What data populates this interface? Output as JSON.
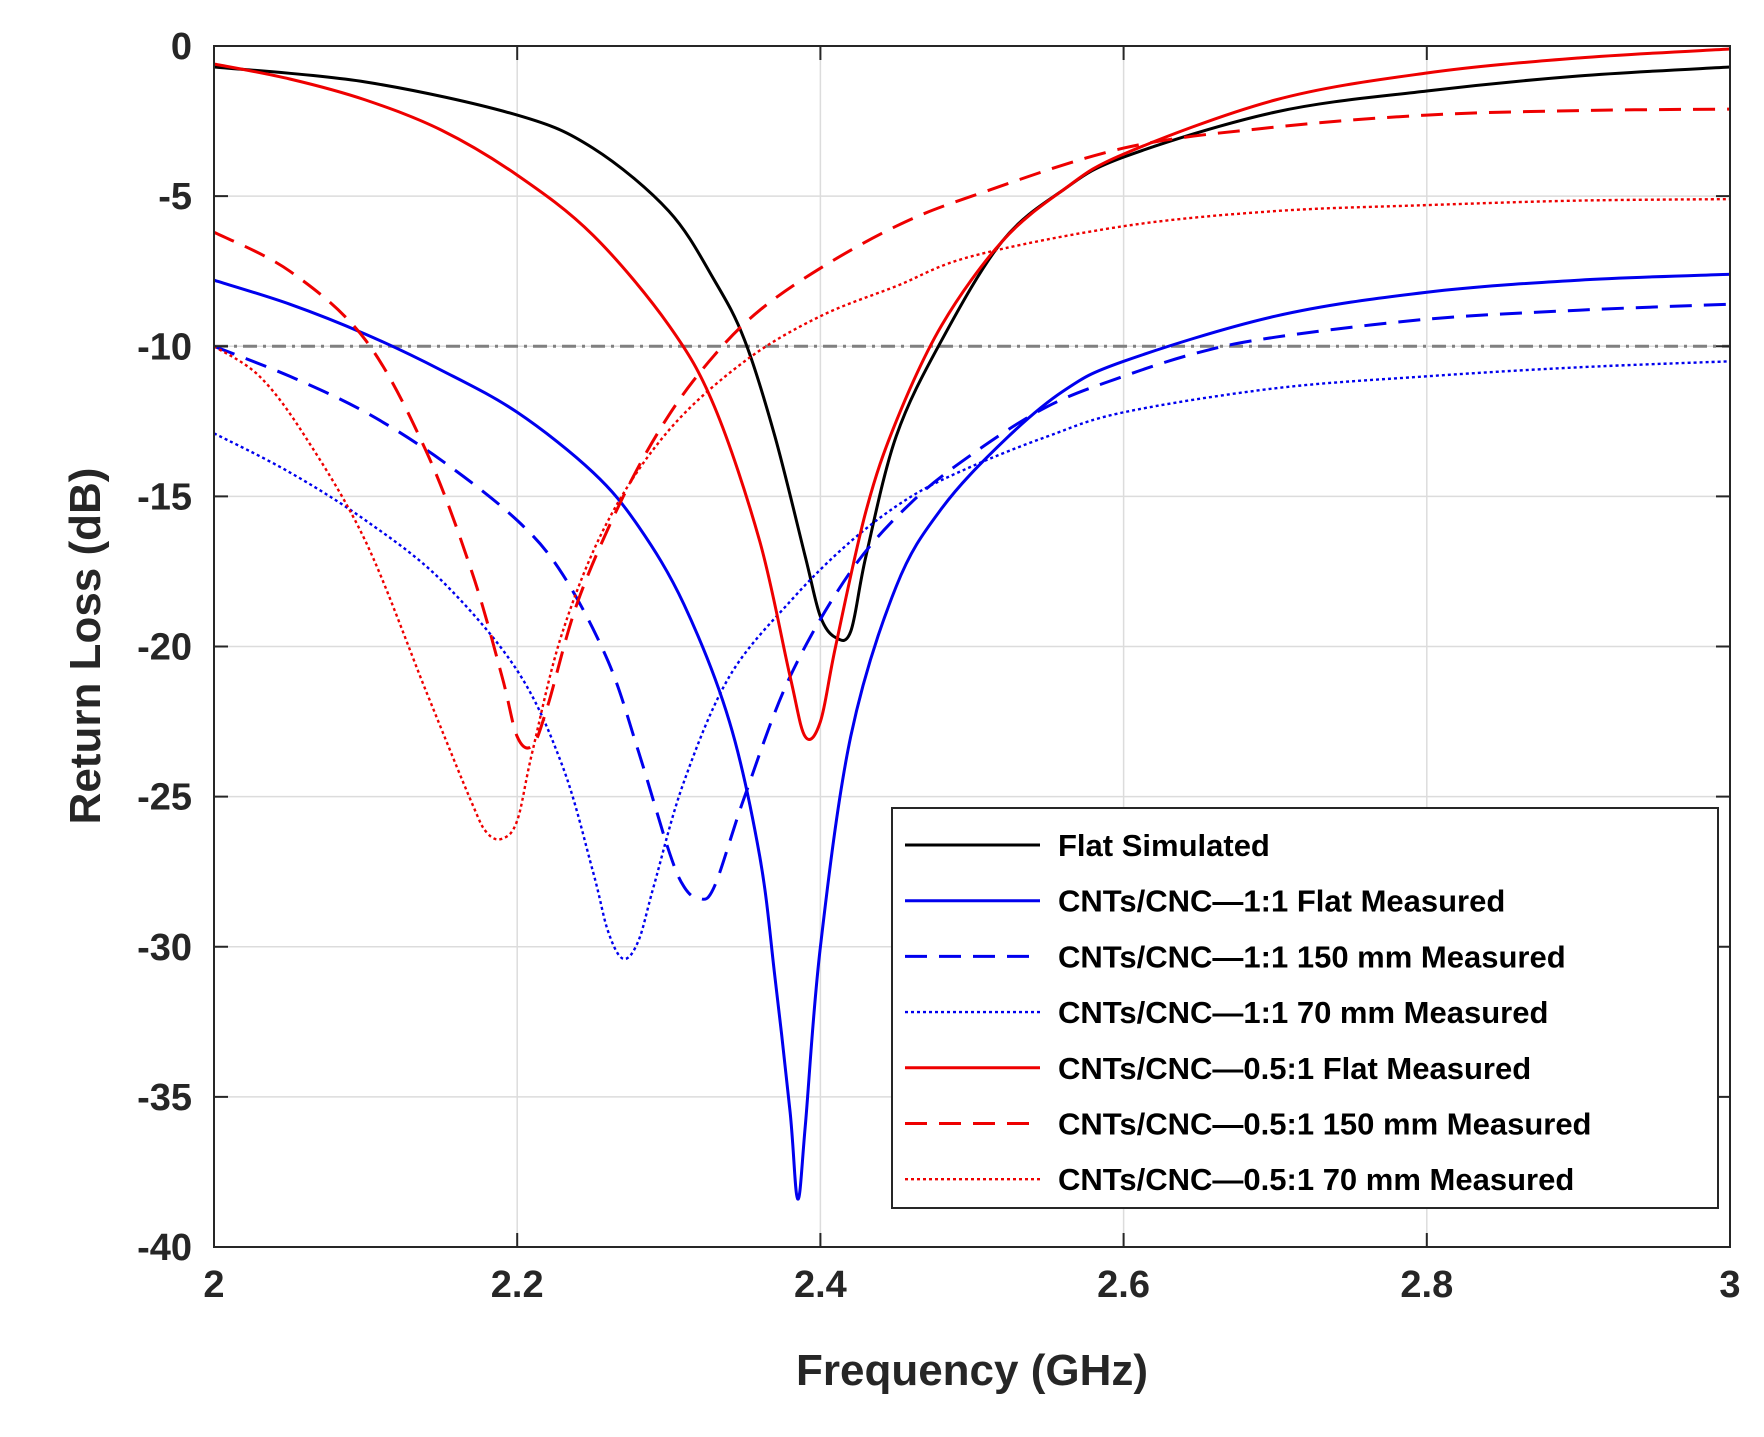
{
  "chart_data": {
    "type": "line",
    "xlabel": "Frequency (GHz)",
    "ylabel": "Return Loss (dB)",
    "xlim": [
      2,
      3
    ],
    "ylim": [
      -40,
      0
    ],
    "xticks": [
      2,
      2.2,
      2.4,
      2.6,
      2.8,
      3
    ],
    "xtick_labels": [
      "2",
      "2.2",
      "2.4",
      "2.6",
      "2.8",
      "3"
    ],
    "yticks": [
      0,
      -5,
      -10,
      -15,
      -20,
      -25,
      -30,
      -35,
      -40
    ],
    "ytick_labels": [
      "0",
      "-5",
      "-10",
      "-15",
      "-20",
      "-25",
      "-30",
      "-35",
      "-40"
    ],
    "grid": true,
    "legend_position": "bottom-right",
    "reference_line": {
      "y": -10,
      "color": "#808080",
      "style": "dashdot"
    },
    "series": [
      {
        "name": "Flat Simulated",
        "color": "#000000",
        "style": "solid",
        "x": [
          2.0,
          2.1,
          2.2,
          2.25,
          2.3,
          2.33,
          2.35,
          2.37,
          2.39,
          2.4,
          2.41,
          2.42,
          2.43,
          2.45,
          2.48,
          2.52,
          2.56,
          2.6,
          2.7,
          2.8,
          2.9,
          3.0
        ],
        "y": [
          -0.7,
          -1.2,
          -2.3,
          -3.4,
          -5.5,
          -7.8,
          -9.8,
          -13.0,
          -17.0,
          -19.0,
          -19.7,
          -19.5,
          -17.0,
          -13.0,
          -9.8,
          -6.5,
          -4.8,
          -3.7,
          -2.2,
          -1.5,
          -1.0,
          -0.7
        ]
      },
      {
        "name": "CNTs/CNC—1:1 Flat Measured",
        "color": "#0000ee",
        "style": "solid",
        "x": [
          2.0,
          2.05,
          2.1,
          2.15,
          2.2,
          2.25,
          2.28,
          2.31,
          2.34,
          2.36,
          2.37,
          2.38,
          2.385,
          2.39,
          2.4,
          2.42,
          2.45,
          2.48,
          2.52,
          2.56,
          2.6,
          2.7,
          2.8,
          2.9,
          3.0
        ],
        "y": [
          -7.8,
          -8.6,
          -9.6,
          -10.8,
          -12.2,
          -14.2,
          -16.0,
          -18.6,
          -22.5,
          -27.0,
          -31.0,
          -35.5,
          -38.4,
          -36.0,
          -30.0,
          -23.0,
          -18.0,
          -15.4,
          -13.2,
          -11.5,
          -10.5,
          -9.0,
          -8.2,
          -7.8,
          -7.6
        ]
      },
      {
        "name": "CNTs/CNC—1:1 150 mm Measured",
        "color": "#0000ee",
        "style": "dashed",
        "x": [
          2.0,
          2.05,
          2.1,
          2.15,
          2.2,
          2.23,
          2.26,
          2.28,
          2.3,
          2.31,
          2.32,
          2.33,
          2.35,
          2.38,
          2.42,
          2.46,
          2.5,
          2.55,
          2.6,
          2.65,
          2.7,
          2.8,
          2.9,
          3.0
        ],
        "y": [
          -10.0,
          -11.0,
          -12.2,
          -13.8,
          -15.8,
          -17.6,
          -20.5,
          -23.5,
          -26.8,
          -28.0,
          -28.4,
          -28.0,
          -25.0,
          -21.0,
          -17.5,
          -15.2,
          -13.6,
          -12.0,
          -11.0,
          -10.2,
          -9.7,
          -9.1,
          -8.8,
          -8.6
        ]
      },
      {
        "name": "CNTs/CNC—1:1 70 mm Measured",
        "color": "#0000ee",
        "style": "dotted",
        "x": [
          2.0,
          2.05,
          2.1,
          2.15,
          2.2,
          2.23,
          2.25,
          2.26,
          2.27,
          2.28,
          2.29,
          2.31,
          2.34,
          2.38,
          2.42,
          2.46,
          2.5,
          2.55,
          2.6,
          2.7,
          2.8,
          2.9,
          3.0
        ],
        "y": [
          -12.9,
          -14.2,
          -15.8,
          -17.8,
          -20.8,
          -24.0,
          -27.5,
          -29.5,
          -30.4,
          -29.8,
          -28.0,
          -24.5,
          -21.0,
          -18.5,
          -16.5,
          -15.0,
          -14.0,
          -13.0,
          -12.2,
          -11.4,
          -11.0,
          -10.7,
          -10.5
        ]
      },
      {
        "name": "CNTs/CNC—0.5:1 Flat Measured",
        "color": "#ee0000",
        "style": "solid",
        "x": [
          2.0,
          2.05,
          2.1,
          2.15,
          2.2,
          2.25,
          2.3,
          2.33,
          2.36,
          2.38,
          2.39,
          2.4,
          2.41,
          2.43,
          2.45,
          2.48,
          2.52,
          2.56,
          2.6,
          2.7,
          2.8,
          2.9,
          3.0
        ],
        "y": [
          -0.6,
          -1.1,
          -1.8,
          -2.8,
          -4.3,
          -6.3,
          -9.3,
          -12.0,
          -16.5,
          -21.0,
          -23.0,
          -22.5,
          -20.0,
          -15.5,
          -12.5,
          -9.3,
          -6.5,
          -4.8,
          -3.6,
          -1.8,
          -0.9,
          -0.4,
          -0.1
        ]
      },
      {
        "name": "CNTs/CNC—0.5:1 150 mm Measured",
        "color": "#ee0000",
        "style": "dashed",
        "x": [
          2.0,
          2.05,
          2.1,
          2.14,
          2.17,
          2.19,
          2.2,
          2.21,
          2.22,
          2.24,
          2.27,
          2.3,
          2.33,
          2.36,
          2.4,
          2.45,
          2.5,
          2.6,
          2.7,
          2.8,
          2.9,
          3.0
        ],
        "y": [
          -6.2,
          -7.5,
          -9.8,
          -13.5,
          -17.5,
          -21.0,
          -23.0,
          -23.3,
          -22.0,
          -18.5,
          -15.0,
          -12.3,
          -10.3,
          -8.8,
          -7.4,
          -6.0,
          -5.0,
          -3.4,
          -2.7,
          -2.3,
          -2.15,
          -2.1
        ]
      },
      {
        "name": "CNTs/CNC—0.5:1 70 mm Measured",
        "color": "#ee0000",
        "style": "dotted",
        "x": [
          2.0,
          2.03,
          2.06,
          2.1,
          2.14,
          2.17,
          2.18,
          2.19,
          2.2,
          2.21,
          2.23,
          2.26,
          2.3,
          2.35,
          2.4,
          2.45,
          2.5,
          2.6,
          2.7,
          2.8,
          2.9,
          3.0
        ],
        "y": [
          -10.0,
          -11.0,
          -13.0,
          -16.5,
          -21.5,
          -25.2,
          -26.2,
          -26.4,
          -25.8,
          -23.5,
          -19.5,
          -15.8,
          -12.8,
          -10.5,
          -9.0,
          -8.0,
          -7.0,
          -6.0,
          -5.5,
          -5.3,
          -5.15,
          -5.1
        ]
      }
    ]
  }
}
